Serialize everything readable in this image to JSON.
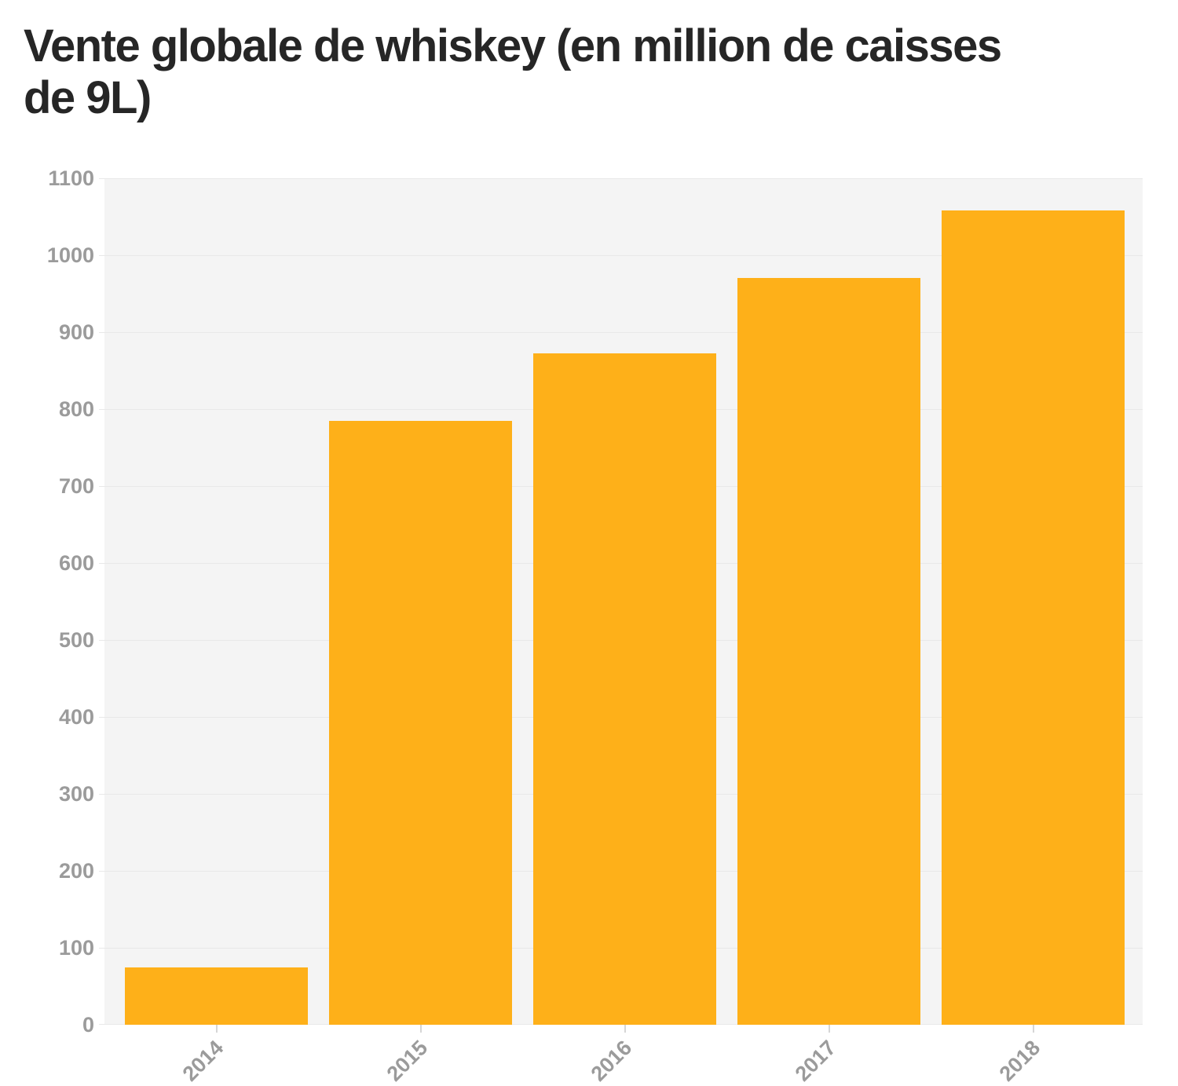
{
  "chart_data": {
    "type": "bar",
    "title": "Vente globale de whiskey (en million de caisses de 9L)",
    "title_lines": [
      "Vente globale de whiskey (en million de caisses",
      "de 9L)"
    ],
    "categories": [
      "2014",
      "2015",
      "2016",
      "2017",
      "2018"
    ],
    "values": [
      74,
      785,
      872,
      970,
      1058
    ],
    "xlabel": "",
    "ylabel": "",
    "ylim": [
      0,
      1100
    ],
    "yticks": [
      0,
      100,
      200,
      300,
      400,
      500,
      600,
      700,
      800,
      900,
      1000,
      1100
    ],
    "grid": true,
    "legend": "none",
    "colors": {
      "bar": "#feb019",
      "plot_background": "#f4f4f4",
      "gridline": "#e8e8e8",
      "axis_label": "#9b9b9b",
      "tick": "#d6d6d6",
      "title": "#262626"
    }
  }
}
